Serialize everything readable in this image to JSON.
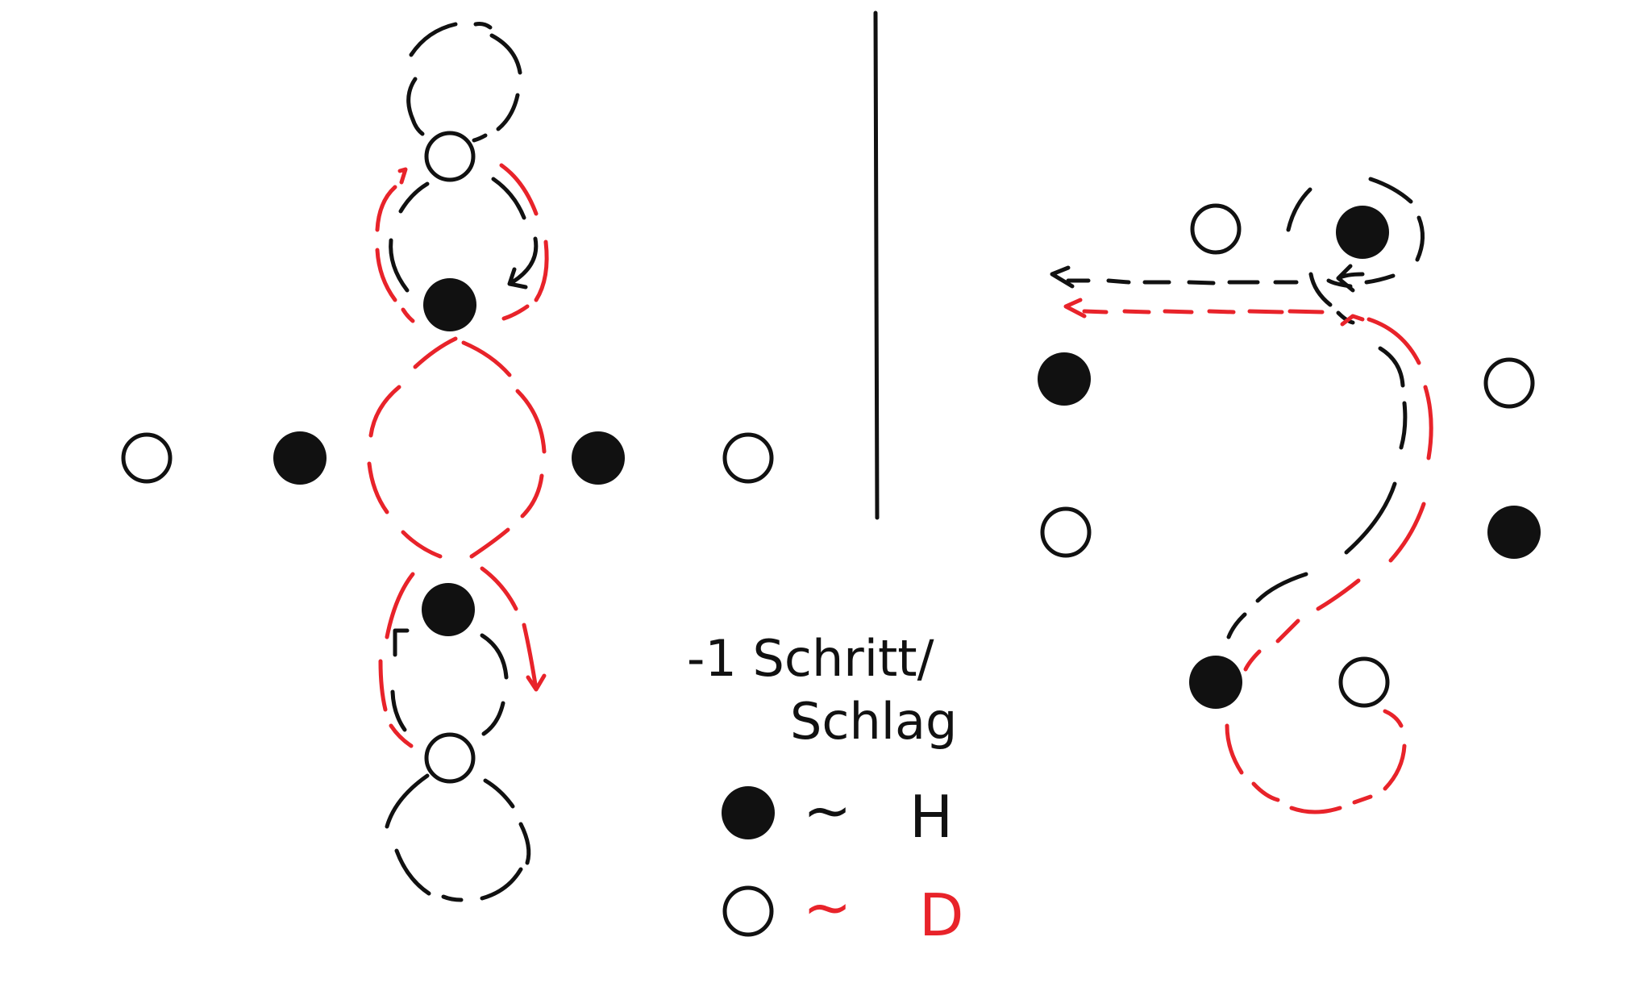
{
  "colors": {
    "ink": "#111111",
    "accent_red": "#e8232a",
    "background": "#ffffff"
  },
  "caption": {
    "line1": "-1 Schritt/",
    "line2": "Schlag"
  },
  "legend": {
    "filled_symbol": "filled-circle",
    "filled_tilde": "~",
    "filled_label": "H",
    "filled_color": "#111111",
    "open_symbol": "open-circle",
    "open_tilde": "~",
    "open_label": "D",
    "open_color": "#e8232a"
  }
}
